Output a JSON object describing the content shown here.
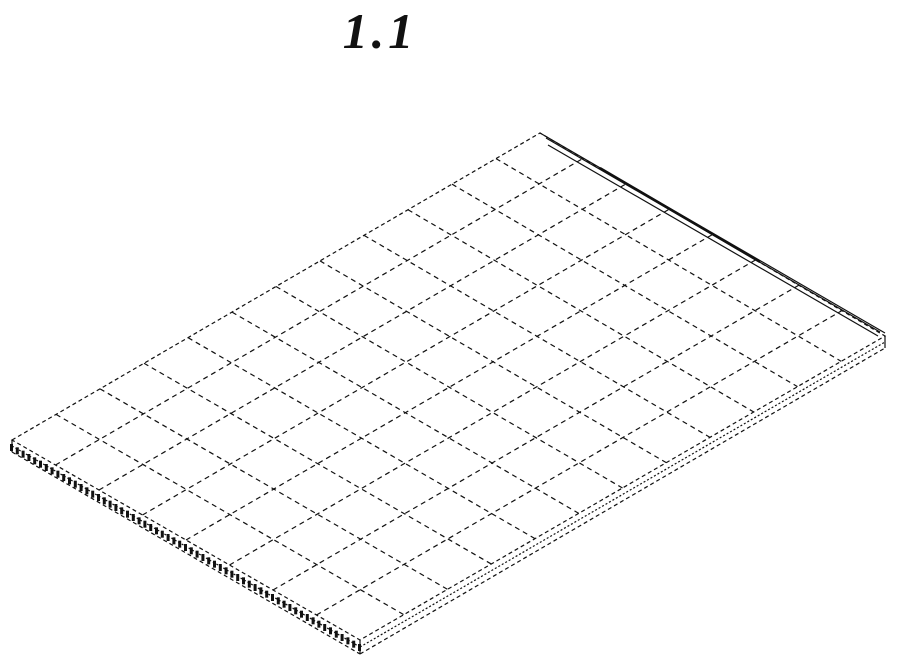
{
  "figure": {
    "label": "1.1"
  },
  "colors": {
    "ink": "#111111",
    "background": "#ffffff"
  },
  "panel": {
    "grid_columns": 8,
    "grid_rows": 12
  }
}
